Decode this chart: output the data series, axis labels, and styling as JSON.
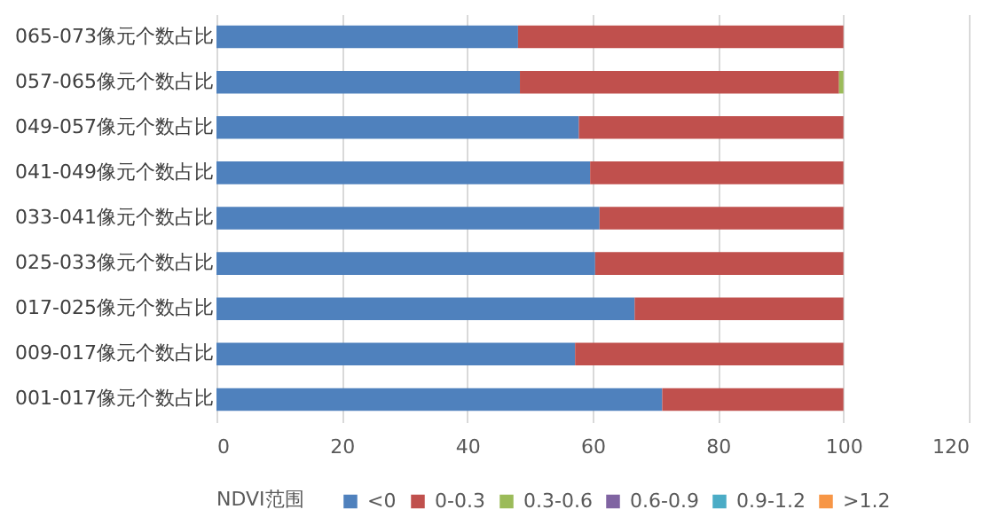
{
  "chart_data": {
    "type": "bar",
    "orientation": "horizontal",
    "stacked": true,
    "legend_title": "NDVI范围",
    "categories": [
      "065-073像元个数占比",
      "057-065像元个数占比",
      "049-057像元个数占比",
      "041-049像元个数占比",
      "033-041像元个数占比",
      "025-033像元个数占比",
      "017-025像元个数占比",
      "009-017像元个数占比",
      "001-017像元个数占比"
    ],
    "series": [
      {
        "name": "<0",
        "color": "#4f81bd",
        "values": [
          48.1,
          48.4,
          57.8,
          59.6,
          61.1,
          60.4,
          66.7,
          57.2,
          71.1
        ]
      },
      {
        "name": "0-0.3",
        "color": "#c0504d",
        "values": [
          51.9,
          50.9,
          42.2,
          40.4,
          38.9,
          39.6,
          33.3,
          42.8,
          28.9
        ]
      },
      {
        "name": "0.3-0.6",
        "color": "#9bbb59",
        "values": [
          0,
          0.7,
          0,
          0,
          0,
          0,
          0,
          0,
          0
        ]
      },
      {
        "name": "0.6-0.9",
        "color": "#8064a2",
        "values": [
          0,
          0,
          0,
          0,
          0,
          0,
          0,
          0,
          0
        ]
      },
      {
        "name": "0.9-1.2",
        "color": "#4bacc6",
        "values": [
          0,
          0,
          0,
          0,
          0,
          0,
          0,
          0,
          0
        ]
      },
      {
        "name": ">1.2",
        "color": "#f79646",
        "values": [
          0,
          0,
          0,
          0,
          0,
          0,
          0,
          0,
          0
        ]
      }
    ],
    "xlim": [
      0,
      120
    ],
    "xticks": [
      0,
      20,
      40,
      60,
      80,
      100,
      120
    ],
    "grid": "x",
    "legend": "bottom"
  }
}
